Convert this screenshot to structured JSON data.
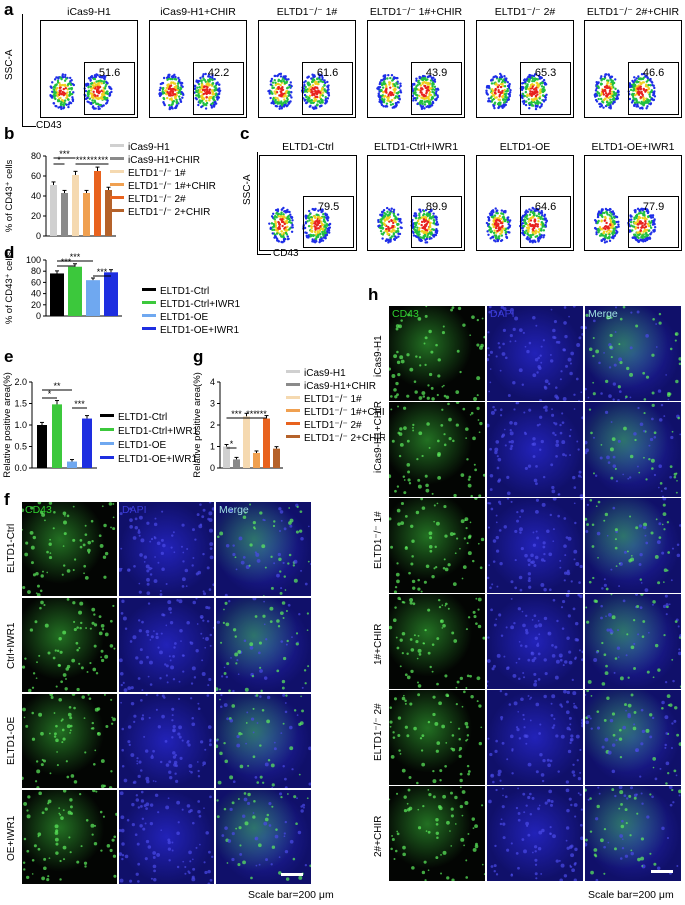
{
  "panels": {
    "a": "a",
    "b": "b",
    "c": "c",
    "d": "d",
    "e": "e",
    "f": "f",
    "g": "g",
    "h": "h"
  },
  "facs_a": {
    "ylabel": "SSC-A",
    "xlabel": "CD43",
    "plots": [
      {
        "title": "iCas9-H1",
        "value": "51.6"
      },
      {
        "title": "iCas9-H1+CHIR",
        "value": "42.2"
      },
      {
        "title": "ELTD1⁻/⁻ 1#",
        "value": "61.6"
      },
      {
        "title": "ELTD1⁻/⁻ 1#+CHIR",
        "value": "43.9"
      },
      {
        "title": "ELTD1⁻/⁻ 2#",
        "value": "65.3"
      },
      {
        "title": "ELTD1⁻/⁻ 2#+CHIR",
        "value": "46.6"
      }
    ]
  },
  "facs_c": {
    "ylabel": "SSC-A",
    "xlabel": "CD43",
    "plots": [
      {
        "title": "ELTD1-Ctrl",
        "value": "79.5"
      },
      {
        "title": "ELTD1-Ctrl+IWR1",
        "value": "89.9"
      },
      {
        "title": "ELTD1-OE",
        "value": "64.6"
      },
      {
        "title": "ELTD1-OE+IWR1",
        "value": "77.9"
      }
    ]
  },
  "chart_data": [
    {
      "id": "b",
      "type": "bar",
      "ylabel": "% of CD43⁺ cells",
      "ylim": [
        0,
        80
      ],
      "yticks": [
        "0",
        "20",
        "40",
        "60",
        "80"
      ],
      "categories": [
        "iCas9-H1",
        "iCas9-H1+CHIR",
        "ELTD1⁻/⁻ 1#",
        "ELTD1⁻/⁻ 1#+CHIR",
        "ELTD1⁻/⁻ 2#",
        "ELTD1⁻/⁻ 2+CHIR"
      ],
      "values": [
        51,
        43,
        61,
        43,
        65,
        46
      ],
      "colors": [
        "#d0d0d0",
        "#8a8a8a",
        "#f5d9b0",
        "#f0a050",
        "#e8621e",
        "#b5622a"
      ],
      "significance": [
        "*",
        "***",
        "***",
        "***",
        "***"
      ]
    },
    {
      "id": "d",
      "type": "bar",
      "ylabel": "% of CD43⁺ cells",
      "ylim": [
        0,
        100
      ],
      "yticks": [
        "0",
        "20",
        "40",
        "60",
        "80",
        "100"
      ],
      "categories": [
        "ELTD1-Ctrl",
        "ELTD1-Ctrl+IWR1",
        "ELTD1-OE",
        "ELTD1-OE+IWR1"
      ],
      "values": [
        76,
        88,
        64,
        78
      ],
      "colors": [
        "#000000",
        "#3cc83c",
        "#6fa8f0",
        "#1e2ee0"
      ],
      "significance": [
        "***",
        "***",
        "***"
      ]
    },
    {
      "id": "e",
      "type": "bar",
      "ylabel": "Relative positive area(%)",
      "ylim": [
        0,
        2.0
      ],
      "yticks": [
        "0.0",
        "0.5",
        "1.0",
        "1.5",
        "2.0"
      ],
      "categories": [
        "ELTD1-Ctrl",
        "ELTD1-Ctrl+IWR1",
        "ELTD1-OE",
        "ELTD1-OE+IWR1"
      ],
      "values": [
        1.0,
        1.48,
        0.15,
        1.15
      ],
      "colors": [
        "#000000",
        "#3cc83c",
        "#6fa8f0",
        "#1e2ee0"
      ],
      "significance": [
        "*",
        "**",
        "***"
      ]
    },
    {
      "id": "g",
      "type": "bar",
      "ylabel": "Relative positive area(%)",
      "ylim": [
        0,
        4
      ],
      "yticks": [
        "0",
        "1",
        "2",
        "3",
        "4"
      ],
      "categories": [
        "iCas9-H1",
        "iCas9-H1+CHIR",
        "ELTD1⁻/⁻ 1#",
        "ELTD1⁻/⁻ 1#+CHIR",
        "ELTD1⁻/⁻ 2#",
        "ELTD1⁻/⁻ 2+CHIR"
      ],
      "values": [
        1.0,
        0.4,
        2.4,
        0.7,
        2.3,
        0.9
      ],
      "colors": [
        "#d0d0d0",
        "#8a8a8a",
        "#f5d9b0",
        "#f0a050",
        "#e8621e",
        "#b5622a"
      ],
      "significance": [
        "*",
        "***",
        "***",
        "***"
      ]
    }
  ],
  "micro_f": {
    "columns": [
      "CD43",
      "DAPI",
      "Merge"
    ],
    "rows": [
      "ELTD1-Ctrl",
      "Ctrl+IWR1",
      "ELTD1-OE",
      "OE+IWR1"
    ],
    "scale": "Scale bar=200 μm"
  },
  "micro_h": {
    "columns": [
      "CD43",
      "DAPI",
      "Merge"
    ],
    "rows": [
      "iCas9-H1",
      "iCas9-H1+CHIR",
      "ELTD1⁻/⁻ 1#",
      "1#+CHIR",
      "ELTD1⁻/⁻ 2#",
      "2#+CHIR"
    ],
    "scale": "Scale bar=200 μm"
  },
  "colors": {
    "cd43": "#2fd02f",
    "dapi": "#1a1aa8",
    "dark": "#050508"
  }
}
